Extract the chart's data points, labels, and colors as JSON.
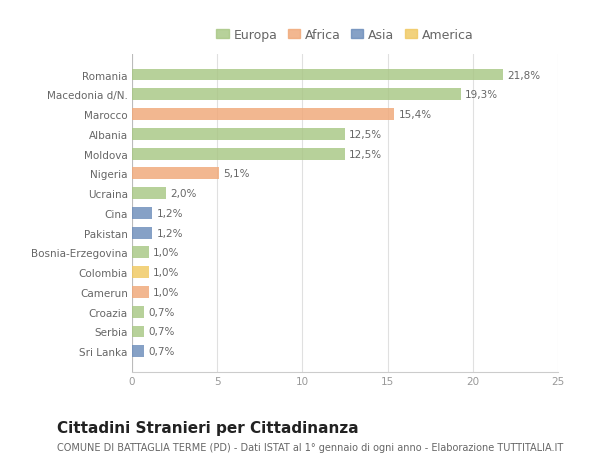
{
  "categories": [
    "Romania",
    "Macedonia d/N.",
    "Marocco",
    "Albania",
    "Moldova",
    "Nigeria",
    "Ucraina",
    "Cina",
    "Pakistan",
    "Bosnia-Erzegovina",
    "Colombia",
    "Camerun",
    "Croazia",
    "Serbia",
    "Sri Lanka"
  ],
  "values": [
    21.8,
    19.3,
    15.4,
    12.5,
    12.5,
    5.1,
    2.0,
    1.2,
    1.2,
    1.0,
    1.0,
    1.0,
    0.7,
    0.7,
    0.7
  ],
  "labels": [
    "21,8%",
    "19,3%",
    "15,4%",
    "12,5%",
    "12,5%",
    "5,1%",
    "2,0%",
    "1,2%",
    "1,2%",
    "1,0%",
    "1,0%",
    "1,0%",
    "0,7%",
    "0,7%",
    "0,7%"
  ],
  "continents": [
    "Europa",
    "Europa",
    "Africa",
    "Europa",
    "Europa",
    "Africa",
    "Europa",
    "Asia",
    "Asia",
    "Europa",
    "America",
    "Africa",
    "Europa",
    "Europa",
    "Asia"
  ],
  "colors": {
    "Europa": "#a8c784",
    "Africa": "#f0a878",
    "Asia": "#6b8cba",
    "America": "#f0c860"
  },
  "legend_order": [
    "Europa",
    "Africa",
    "Asia",
    "America"
  ],
  "title": "Cittadini Stranieri per Cittadinanza",
  "subtitle": "COMUNE DI BATTAGLIA TERME (PD) - Dati ISTAT al 1° gennaio di ogni anno - Elaborazione TUTTITALIA.IT",
  "xlim": [
    0,
    25
  ],
  "xticks": [
    0,
    5,
    10,
    15,
    20,
    25
  ],
  "background_color": "#ffffff",
  "bar_height": 0.6,
  "title_fontsize": 11,
  "subtitle_fontsize": 7,
  "label_fontsize": 7.5,
  "tick_fontsize": 7.5,
  "legend_fontsize": 9
}
